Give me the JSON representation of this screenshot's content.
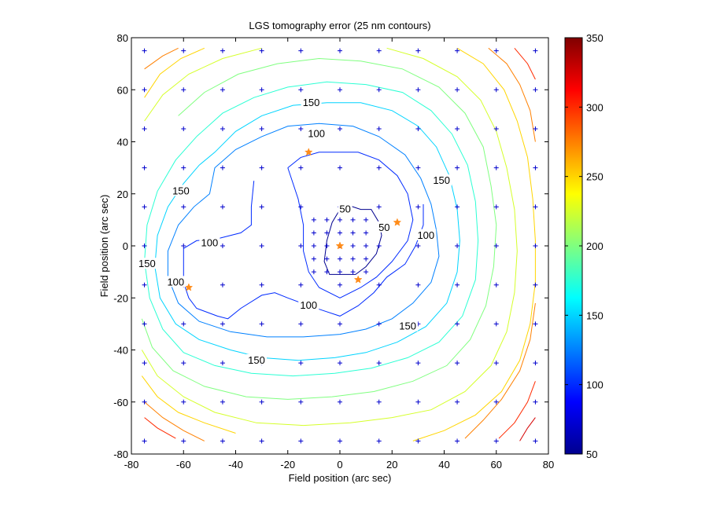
{
  "chart_data": {
    "type": "contour",
    "title": "LGS tomography error (25 nm contours)",
    "xlabel": "Field position (arc sec)",
    "ylabel": "Field position (arc sec)",
    "xlim": [
      -80,
      80
    ],
    "ylim": [
      -80,
      80
    ],
    "xticks": [
      -80,
      -60,
      -40,
      -20,
      0,
      20,
      40,
      60,
      80
    ],
    "yticks": [
      -80,
      -60,
      -40,
      -20,
      0,
      20,
      40,
      60,
      80
    ],
    "colorbar": {
      "range": [
        50,
        350
      ],
      "ticks": [
        50,
        100,
        150,
        200,
        250,
        300,
        350
      ]
    },
    "contour_step": 25,
    "contour_labels": [
      {
        "text": "150",
        "x": -11,
        "y": 55
      },
      {
        "text": "100",
        "x": -9,
        "y": 43
      },
      {
        "text": "150",
        "x": -61,
        "y": 21
      },
      {
        "text": "150",
        "x": 39,
        "y": 25
      },
      {
        "text": "50",
        "x": 2,
        "y": 14
      },
      {
        "text": "50",
        "x": 17,
        "y": 7
      },
      {
        "text": "100",
        "x": -50,
        "y": 1
      },
      {
        "text": "100",
        "x": 33,
        "y": 4
      },
      {
        "text": "150",
        "x": -74,
        "y": -7
      },
      {
        "text": "100",
        "x": -63,
        "y": -14
      },
      {
        "text": "100",
        "x": -12,
        "y": -23
      },
      {
        "text": "150",
        "x": 26,
        "y": -31
      },
      {
        "text": "150",
        "x": -32,
        "y": -44
      }
    ],
    "contours": [
      {
        "level": 50,
        "points": [
          [
            0,
            14
          ],
          [
            2,
            16
          ],
          [
            8,
            14
          ],
          [
            12,
            14
          ],
          [
            15,
            9
          ],
          [
            16,
            4
          ],
          [
            14,
            -3
          ],
          [
            10,
            -8
          ],
          [
            6,
            -11
          ],
          [
            1,
            -11
          ],
          [
            -4,
            -11
          ],
          [
            -6,
            -6
          ],
          [
            -5,
            2
          ],
          [
            -3,
            9
          ],
          [
            0,
            14
          ]
        ]
      },
      {
        "level": 100,
        "points": [
          [
            -20,
            30
          ],
          [
            -15,
            34
          ],
          [
            -8,
            36
          ],
          [
            0,
            36
          ],
          [
            7,
            36
          ],
          [
            15,
            33
          ],
          [
            22,
            27
          ],
          [
            26,
            20
          ],
          [
            28,
            10
          ],
          [
            26,
            2
          ],
          [
            20,
            -6
          ],
          [
            14,
            -12
          ],
          [
            8,
            -16
          ],
          [
            0,
            -20
          ],
          [
            -8,
            -16
          ],
          [
            -12,
            -10
          ],
          [
            -14,
            -2
          ],
          [
            -14,
            8
          ],
          [
            -16,
            18
          ],
          [
            -20,
            30
          ]
        ]
      },
      {
        "level": 100,
        "points": [
          [
            -33,
            25
          ],
          [
            -34,
            15
          ],
          [
            -34,
            8
          ],
          [
            -38,
            5
          ],
          [
            -46,
            3
          ],
          [
            -55,
            2
          ],
          [
            -60,
            -1
          ],
          [
            -60,
            -8
          ],
          [
            -60,
            -14
          ],
          [
            -58,
            -20
          ],
          [
            -55,
            -24
          ],
          [
            -47,
            -27
          ],
          [
            -43,
            -28
          ],
          [
            -38,
            -24
          ],
          [
            -30,
            -19
          ],
          [
            -25,
            -18
          ],
          [
            -20,
            -20
          ],
          [
            -12,
            -23
          ],
          [
            -6,
            -25
          ],
          [
            0,
            -27
          ],
          [
            7,
            -23
          ],
          [
            13,
            -18
          ],
          [
            18,
            -12
          ],
          [
            25,
            -7
          ],
          [
            29,
            0
          ],
          [
            32,
            8
          ],
          [
            32,
            16
          ]
        ]
      },
      {
        "level": 125,
        "points": [
          [
            -50,
            20
          ],
          [
            -48,
            30
          ],
          [
            -40,
            37
          ],
          [
            -30,
            42
          ],
          [
            -20,
            46
          ],
          [
            -8,
            47
          ],
          [
            5,
            46
          ],
          [
            15,
            42
          ],
          [
            25,
            35
          ],
          [
            31,
            26
          ],
          [
            35,
            16
          ],
          [
            37,
            6
          ],
          [
            38,
            -4
          ],
          [
            35,
            -14
          ],
          [
            28,
            -22
          ],
          [
            20,
            -28
          ],
          [
            10,
            -32
          ],
          [
            0,
            -34
          ],
          [
            -14,
            -35
          ],
          [
            -28,
            -35
          ],
          [
            -42,
            -33
          ],
          [
            -54,
            -29
          ],
          [
            -62,
            -22
          ],
          [
            -66,
            -12
          ],
          [
            -66,
            -2
          ],
          [
            -62,
            8
          ],
          [
            -56,
            15
          ],
          [
            -50,
            20
          ]
        ]
      },
      {
        "level": 150,
        "points": [
          [
            -48,
            36
          ],
          [
            -40,
            44
          ],
          [
            -30,
            50
          ],
          [
            -18,
            54
          ],
          [
            -5,
            55
          ],
          [
            8,
            55
          ],
          [
            20,
            52
          ],
          [
            30,
            46
          ],
          [
            37,
            38
          ],
          [
            42,
            27
          ],
          [
            45,
            14
          ],
          [
            46,
            2
          ],
          [
            45,
            -10
          ],
          [
            41,
            -22
          ],
          [
            33,
            -31
          ],
          [
            22,
            -37
          ],
          [
            10,
            -41
          ],
          [
            -2,
            -43
          ],
          [
            -16,
            -44
          ],
          [
            -30,
            -43
          ],
          [
            -42,
            -40
          ],
          [
            -54,
            -36
          ],
          [
            -63,
            -30
          ],
          [
            -69,
            -20
          ],
          [
            -71,
            -8
          ],
          [
            -70,
            4
          ],
          [
            -66,
            15
          ],
          [
            -60,
            24
          ],
          [
            -54,
            31
          ],
          [
            -48,
            36
          ]
        ]
      },
      {
        "level": 175,
        "points": [
          [
            -55,
            42
          ],
          [
            -45,
            51
          ],
          [
            -33,
            57
          ],
          [
            -20,
            61
          ],
          [
            -5,
            63
          ],
          [
            10,
            62
          ],
          [
            24,
            59
          ],
          [
            35,
            52
          ],
          [
            43,
            43
          ],
          [
            49,
            31
          ],
          [
            52,
            17
          ],
          [
            53,
            2
          ],
          [
            52,
            -13
          ],
          [
            47,
            -27
          ],
          [
            38,
            -37
          ],
          [
            26,
            -43
          ],
          [
            12,
            -47
          ],
          [
            -2,
            -49
          ],
          [
            -18,
            -50
          ],
          [
            -34,
            -49
          ],
          [
            -48,
            -46
          ],
          [
            -60,
            -41
          ],
          [
            -68,
            -32
          ],
          [
            -73,
            -20
          ],
          [
            -75,
            -6
          ],
          [
            -74,
            8
          ],
          [
            -70,
            21
          ],
          [
            -63,
            33
          ],
          [
            -55,
            42
          ]
        ]
      },
      {
        "level": 200,
        "points": [
          [
            -62,
            50
          ],
          [
            -52,
            59
          ],
          [
            -39,
            66
          ],
          [
            -24,
            70
          ],
          [
            -8,
            72
          ],
          [
            8,
            71
          ],
          [
            24,
            68
          ],
          [
            38,
            61
          ],
          [
            48,
            51
          ],
          [
            55,
            38
          ],
          [
            58,
            23
          ],
          [
            60,
            8
          ],
          [
            59,
            -8
          ],
          [
            56,
            -23
          ],
          [
            50,
            -36
          ],
          [
            41,
            -46
          ],
          [
            28,
            -52
          ],
          [
            13,
            -56
          ],
          [
            -3,
            -58
          ],
          [
            -20,
            -59
          ],
          [
            -36,
            -58
          ],
          [
            -52,
            -54
          ],
          [
            -64,
            -48
          ],
          [
            -72,
            -39
          ],
          [
            -76,
            -28
          ]
        ]
      },
      {
        "level": 225,
        "points": [
          [
            -75,
            48
          ],
          [
            -68,
            58
          ],
          [
            -58,
            66
          ],
          [
            -45,
            72
          ],
          [
            -30,
            76
          ]
        ]
      },
      {
        "level": 225,
        "points": [
          [
            18,
            76
          ],
          [
            32,
            72
          ],
          [
            45,
            65
          ],
          [
            54,
            56
          ],
          [
            60,
            44
          ],
          [
            64,
            30
          ],
          [
            67,
            14
          ],
          [
            68,
            -2
          ],
          [
            67,
            -18
          ],
          [
            64,
            -33
          ],
          [
            58,
            -46
          ],
          [
            48,
            -56
          ],
          [
            35,
            -63
          ],
          [
            20,
            -66
          ],
          [
            4,
            -68
          ],
          [
            -14,
            -69
          ],
          [
            -32,
            -68
          ],
          [
            -48,
            -64
          ],
          [
            -60,
            -58
          ],
          [
            -70,
            -50
          ],
          [
            -76,
            -40
          ]
        ]
      },
      {
        "level": 250,
        "points": [
          [
            -75,
            57
          ],
          [
            -69,
            66
          ],
          [
            -61,
            72
          ],
          [
            -52,
            76
          ]
        ]
      },
      {
        "level": 250,
        "points": [
          [
            45,
            76
          ],
          [
            55,
            70
          ],
          [
            63,
            60
          ],
          [
            68,
            48
          ],
          [
            72,
            34
          ],
          [
            74,
            18
          ],
          [
            75,
            2
          ],
          [
            75,
            -14
          ],
          [
            73,
            -30
          ],
          [
            69,
            -44
          ],
          [
            62,
            -56
          ],
          [
            52,
            -65
          ],
          [
            40,
            -71
          ],
          [
            28,
            -75
          ]
        ]
      },
      {
        "level": 250,
        "points": [
          [
            -76,
            -50
          ],
          [
            -70,
            -58
          ],
          [
            -62,
            -64
          ],
          [
            -52,
            -68
          ],
          [
            -40,
            -72
          ]
        ]
      },
      {
        "level": 275,
        "points": [
          [
            -75,
            68
          ],
          [
            -68,
            73
          ],
          [
            -62,
            76
          ]
        ]
      },
      {
        "level": 275,
        "points": [
          [
            57,
            76
          ],
          [
            64,
            70
          ],
          [
            69,
            62
          ],
          [
            73,
            52
          ],
          [
            75,
            40
          ]
        ]
      },
      {
        "level": 275,
        "points": [
          [
            75,
            -22
          ],
          [
            73,
            -36
          ],
          [
            69,
            -48
          ],
          [
            62,
            -59
          ],
          [
            55,
            -67
          ],
          [
            48,
            -74
          ]
        ]
      },
      {
        "level": 275,
        "points": [
          [
            -75,
            -60
          ],
          [
            -68,
            -66
          ],
          [
            -60,
            -71
          ],
          [
            -52,
            -75
          ]
        ]
      },
      {
        "level": 300,
        "points": [
          [
            -75,
            -66
          ],
          [
            -70,
            -70
          ],
          [
            -63,
            -74
          ]
        ]
      },
      {
        "level": 300,
        "points": [
          [
            67,
            76
          ],
          [
            72,
            70
          ],
          [
            75,
            64
          ]
        ]
      },
      {
        "level": 300,
        "points": [
          [
            75,
            -52
          ],
          [
            72,
            -60
          ],
          [
            67,
            -68
          ],
          [
            61,
            -74
          ]
        ]
      },
      {
        "level": 325,
        "points": [
          [
            75,
            -66
          ],
          [
            72,
            -70
          ],
          [
            69,
            -75
          ]
        ]
      }
    ],
    "grid_points_outer": [
      -75,
      -60,
      -45,
      -30,
      -15,
      0,
      15,
      30,
      45,
      60,
      75
    ],
    "grid_points_inner": [
      -10,
      -5,
      0,
      5,
      10
    ],
    "guide_stars": [
      [
        -12,
        36
      ],
      [
        22,
        9
      ],
      [
        -58,
        -16
      ],
      [
        7,
        -13
      ],
      [
        0,
        0
      ]
    ],
    "colors": {
      "marker": "#0000cc",
      "star": "#ff8c1a",
      "axis": "#000000"
    }
  }
}
